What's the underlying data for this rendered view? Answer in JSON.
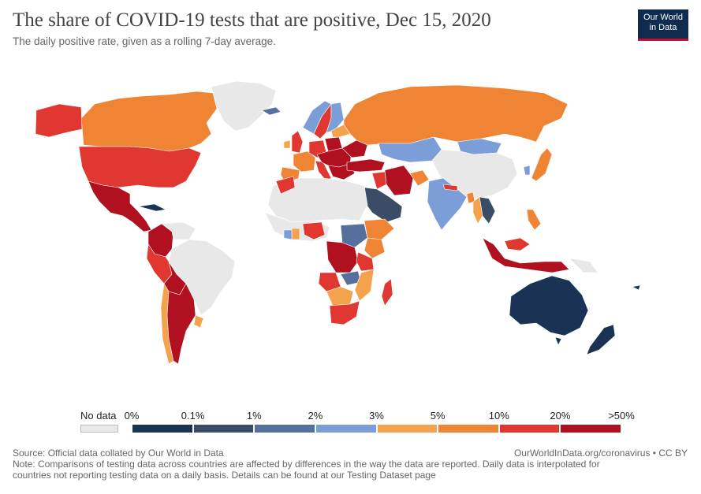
{
  "header": {
    "title": "The share of COVID-19 tests that are positive, Dec 15, 2020",
    "subtitle": "The daily positive rate, given as a rolling 7-day average."
  },
  "logo": {
    "line1": "Our World",
    "line2": "in Data"
  },
  "legend": {
    "no_data_label": "No data",
    "no_data_color": "#e8e8e8",
    "ticks": [
      "0%",
      "0.1%",
      "1%",
      "2%",
      "3%",
      "5%",
      "10%",
      "20%",
      ">50%"
    ],
    "bins": [
      {
        "from": "0%",
        "to": "0.1%",
        "color": "#1a3355"
      },
      {
        "from": "0.1%",
        "to": "1%",
        "color": "#3b4d66"
      },
      {
        "from": "1%",
        "to": "2%",
        "color": "#56709e"
      },
      {
        "from": "2%",
        "to": "3%",
        "color": "#7c9ed8"
      },
      {
        "from": "3%",
        "to": "5%",
        "color": "#f5a24c"
      },
      {
        "from": "5%",
        "to": "10%",
        "color": "#ef8435"
      },
      {
        "from": "10%",
        "to": "20%",
        "color": "#e03830"
      },
      {
        "from": "20%",
        "to": ">50%",
        "color": "#b0101f"
      }
    ]
  },
  "colors": {
    "nodata": "#e8e8e8",
    "c0": "#1a3355",
    "c1": "#3b4d66",
    "c2": "#56709e",
    "c3": "#7c9ed8",
    "c4": "#f5a24c",
    "c5": "#ef8435",
    "c6": "#e03830",
    "c7": "#b0101f"
  },
  "footer": {
    "source": "Source: Official data collated by Our World in Data",
    "note_line1": "Note: Comparisons of testing data across countries are affected by differences in the way the data are reported. Daily data is interpolated for",
    "note_line2": "countries not reporting testing data on a daily basis. Details can be found at our Testing Dataset page",
    "right": "OurWorldInData.org/coronavirus • CC BY"
  }
}
